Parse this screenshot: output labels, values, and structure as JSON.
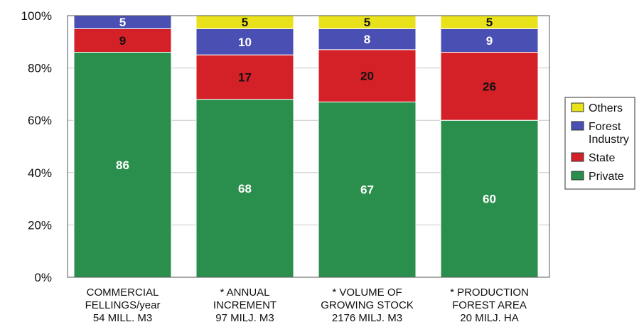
{
  "chart_data": {
    "type": "bar",
    "stacked": true,
    "percent": true,
    "categories": [
      [
        "COMMERCIAL",
        "FELLINGS/year",
        "54 MILL. M3"
      ],
      [
        "* ANNUAL",
        "INCREMENT",
        "97 MILJ. M3"
      ],
      [
        "* VOLUME OF",
        "GROWING STOCK",
        "2176 MILJ. M3"
      ],
      [
        "* PRODUCTION",
        "FOREST AREA",
        "20 MILJ. HA"
      ]
    ],
    "series": [
      {
        "name": "Private",
        "color": "#2a8f4c",
        "label_color": "#ffffff",
        "values": [
          86,
          68,
          67,
          60
        ]
      },
      {
        "name": "State",
        "color": "#d42127",
        "label_color": "#111111",
        "values": [
          9,
          17,
          20,
          26
        ]
      },
      {
        "name": "Forest Industry",
        "color": "#4a4fb3",
        "label_color": "#ffffff",
        "values": [
          5,
          10,
          8,
          9
        ]
      },
      {
        "name": "Others",
        "color": "#e9e21a",
        "label_color": "#111111",
        "values": [
          0,
          5,
          5,
          5
        ]
      }
    ],
    "legend_order": [
      {
        "lines": [
          "Others"
        ],
        "series": 3
      },
      {
        "lines": [
          "Forest",
          "Industry"
        ],
        "series": 2
      },
      {
        "lines": [
          "State"
        ],
        "series": 1
      },
      {
        "lines": [
          "Private"
        ],
        "series": 0
      }
    ],
    "y_ticks": [
      "0%",
      "20%",
      "40%",
      "60%",
      "80%",
      "100%"
    ],
    "ylim": [
      0,
      100
    ],
    "grid": true,
    "legend_position": "right",
    "title": "",
    "xlabel": "",
    "ylabel": ""
  }
}
